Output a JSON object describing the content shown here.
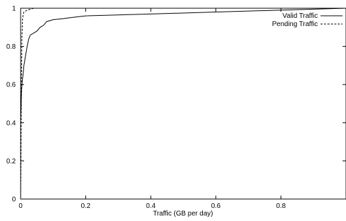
{
  "chart_data": {
    "type": "line",
    "title": "",
    "xlabel": "Traffic (GB per day)",
    "ylabel": "",
    "xlim": [
      0,
      1
    ],
    "ylim": [
      0,
      1
    ],
    "grid": false,
    "legend_position": "top-right",
    "x_ticks": [
      0,
      0.2,
      0.4,
      0.6,
      0.8
    ],
    "x_tick_labels": [
      "0",
      "0.2",
      "0.4",
      "0.6",
      "0.8"
    ],
    "y_ticks": [
      0,
      0.2,
      0.4,
      0.6,
      0.8,
      1
    ],
    "y_tick_labels": [
      "0",
      "0.2",
      "0.4",
      "0.6",
      "0.8",
      "1"
    ],
    "series": [
      {
        "name": "Valid Traffic",
        "style": "solid",
        "color": "#000000",
        "x": [
          0,
          0.001,
          0.002,
          0.003,
          0.005,
          0.008,
          0.01,
          0.015,
          0.02,
          0.025,
          0.03,
          0.04,
          0.05,
          0.06,
          0.07,
          0.08,
          0.1,
          0.13,
          0.15,
          0.2,
          0.3,
          0.4,
          0.5,
          0.6,
          0.8,
          1.0
        ],
        "y": [
          0.42,
          0.46,
          0.52,
          0.57,
          0.62,
          0.66,
          0.7,
          0.75,
          0.8,
          0.84,
          0.86,
          0.87,
          0.88,
          0.9,
          0.91,
          0.93,
          0.94,
          0.945,
          0.95,
          0.96,
          0.965,
          0.97,
          0.975,
          0.98,
          0.99,
          1.0
        ]
      },
      {
        "name": "Pending Traffic",
        "style": "dashed",
        "color": "#000000",
        "x": [
          0,
          0.001,
          0.002,
          0.004,
          0.006,
          0.01,
          0.02,
          0.03,
          0.04,
          0.05
        ],
        "y": [
          0.0,
          0.2,
          0.5,
          0.85,
          0.95,
          0.98,
          0.99,
          0.995,
          1.0,
          1.0
        ]
      }
    ]
  }
}
